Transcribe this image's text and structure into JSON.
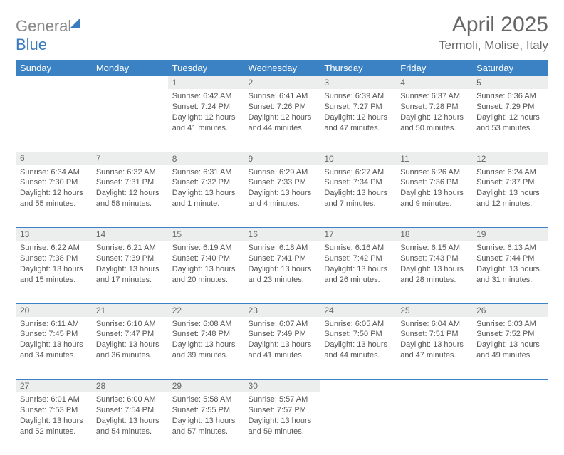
{
  "brand": {
    "part1": "General",
    "part2": "Blue"
  },
  "title": "April 2025",
  "location": "Termoli, Molise, Italy",
  "colors": {
    "header_bg": "#3b82c4",
    "header_text": "#ffffff",
    "daynum_bg": "#eceded",
    "cell_border": "#3b82c4",
    "text": "#555555",
    "logo_gray": "#888888",
    "logo_blue": "#3b7bbf"
  },
  "fonts": {
    "title_size": 30,
    "location_size": 17,
    "dayhead_size": 13,
    "daynum_size": 12,
    "body_size": 11
  },
  "calendar": {
    "day_headers": [
      "Sunday",
      "Monday",
      "Tuesday",
      "Wednesday",
      "Thursday",
      "Friday",
      "Saturday"
    ],
    "weeks": [
      [
        null,
        null,
        {
          "n": "1",
          "sr": "Sunrise: 6:42 AM",
          "ss": "Sunset: 7:24 PM",
          "dl": "Daylight: 12 hours and 41 minutes."
        },
        {
          "n": "2",
          "sr": "Sunrise: 6:41 AM",
          "ss": "Sunset: 7:26 PM",
          "dl": "Daylight: 12 hours and 44 minutes."
        },
        {
          "n": "3",
          "sr": "Sunrise: 6:39 AM",
          "ss": "Sunset: 7:27 PM",
          "dl": "Daylight: 12 hours and 47 minutes."
        },
        {
          "n": "4",
          "sr": "Sunrise: 6:37 AM",
          "ss": "Sunset: 7:28 PM",
          "dl": "Daylight: 12 hours and 50 minutes."
        },
        {
          "n": "5",
          "sr": "Sunrise: 6:36 AM",
          "ss": "Sunset: 7:29 PM",
          "dl": "Daylight: 12 hours and 53 minutes."
        }
      ],
      [
        {
          "n": "6",
          "sr": "Sunrise: 6:34 AM",
          "ss": "Sunset: 7:30 PM",
          "dl": "Daylight: 12 hours and 55 minutes."
        },
        {
          "n": "7",
          "sr": "Sunrise: 6:32 AM",
          "ss": "Sunset: 7:31 PM",
          "dl": "Daylight: 12 hours and 58 minutes."
        },
        {
          "n": "8",
          "sr": "Sunrise: 6:31 AM",
          "ss": "Sunset: 7:32 PM",
          "dl": "Daylight: 13 hours and 1 minute."
        },
        {
          "n": "9",
          "sr": "Sunrise: 6:29 AM",
          "ss": "Sunset: 7:33 PM",
          "dl": "Daylight: 13 hours and 4 minutes."
        },
        {
          "n": "10",
          "sr": "Sunrise: 6:27 AM",
          "ss": "Sunset: 7:34 PM",
          "dl": "Daylight: 13 hours and 7 minutes."
        },
        {
          "n": "11",
          "sr": "Sunrise: 6:26 AM",
          "ss": "Sunset: 7:36 PM",
          "dl": "Daylight: 13 hours and 9 minutes."
        },
        {
          "n": "12",
          "sr": "Sunrise: 6:24 AM",
          "ss": "Sunset: 7:37 PM",
          "dl": "Daylight: 13 hours and 12 minutes."
        }
      ],
      [
        {
          "n": "13",
          "sr": "Sunrise: 6:22 AM",
          "ss": "Sunset: 7:38 PM",
          "dl": "Daylight: 13 hours and 15 minutes."
        },
        {
          "n": "14",
          "sr": "Sunrise: 6:21 AM",
          "ss": "Sunset: 7:39 PM",
          "dl": "Daylight: 13 hours and 17 minutes."
        },
        {
          "n": "15",
          "sr": "Sunrise: 6:19 AM",
          "ss": "Sunset: 7:40 PM",
          "dl": "Daylight: 13 hours and 20 minutes."
        },
        {
          "n": "16",
          "sr": "Sunrise: 6:18 AM",
          "ss": "Sunset: 7:41 PM",
          "dl": "Daylight: 13 hours and 23 minutes."
        },
        {
          "n": "17",
          "sr": "Sunrise: 6:16 AM",
          "ss": "Sunset: 7:42 PM",
          "dl": "Daylight: 13 hours and 26 minutes."
        },
        {
          "n": "18",
          "sr": "Sunrise: 6:15 AM",
          "ss": "Sunset: 7:43 PM",
          "dl": "Daylight: 13 hours and 28 minutes."
        },
        {
          "n": "19",
          "sr": "Sunrise: 6:13 AM",
          "ss": "Sunset: 7:44 PM",
          "dl": "Daylight: 13 hours and 31 minutes."
        }
      ],
      [
        {
          "n": "20",
          "sr": "Sunrise: 6:11 AM",
          "ss": "Sunset: 7:45 PM",
          "dl": "Daylight: 13 hours and 34 minutes."
        },
        {
          "n": "21",
          "sr": "Sunrise: 6:10 AM",
          "ss": "Sunset: 7:47 PM",
          "dl": "Daylight: 13 hours and 36 minutes."
        },
        {
          "n": "22",
          "sr": "Sunrise: 6:08 AM",
          "ss": "Sunset: 7:48 PM",
          "dl": "Daylight: 13 hours and 39 minutes."
        },
        {
          "n": "23",
          "sr": "Sunrise: 6:07 AM",
          "ss": "Sunset: 7:49 PM",
          "dl": "Daylight: 13 hours and 41 minutes."
        },
        {
          "n": "24",
          "sr": "Sunrise: 6:05 AM",
          "ss": "Sunset: 7:50 PM",
          "dl": "Daylight: 13 hours and 44 minutes."
        },
        {
          "n": "25",
          "sr": "Sunrise: 6:04 AM",
          "ss": "Sunset: 7:51 PM",
          "dl": "Daylight: 13 hours and 47 minutes."
        },
        {
          "n": "26",
          "sr": "Sunrise: 6:03 AM",
          "ss": "Sunset: 7:52 PM",
          "dl": "Daylight: 13 hours and 49 minutes."
        }
      ],
      [
        {
          "n": "27",
          "sr": "Sunrise: 6:01 AM",
          "ss": "Sunset: 7:53 PM",
          "dl": "Daylight: 13 hours and 52 minutes."
        },
        {
          "n": "28",
          "sr": "Sunrise: 6:00 AM",
          "ss": "Sunset: 7:54 PM",
          "dl": "Daylight: 13 hours and 54 minutes."
        },
        {
          "n": "29",
          "sr": "Sunrise: 5:58 AM",
          "ss": "Sunset: 7:55 PM",
          "dl": "Daylight: 13 hours and 57 minutes."
        },
        {
          "n": "30",
          "sr": "Sunrise: 5:57 AM",
          "ss": "Sunset: 7:57 PM",
          "dl": "Daylight: 13 hours and 59 minutes."
        },
        null,
        null,
        null
      ]
    ]
  }
}
